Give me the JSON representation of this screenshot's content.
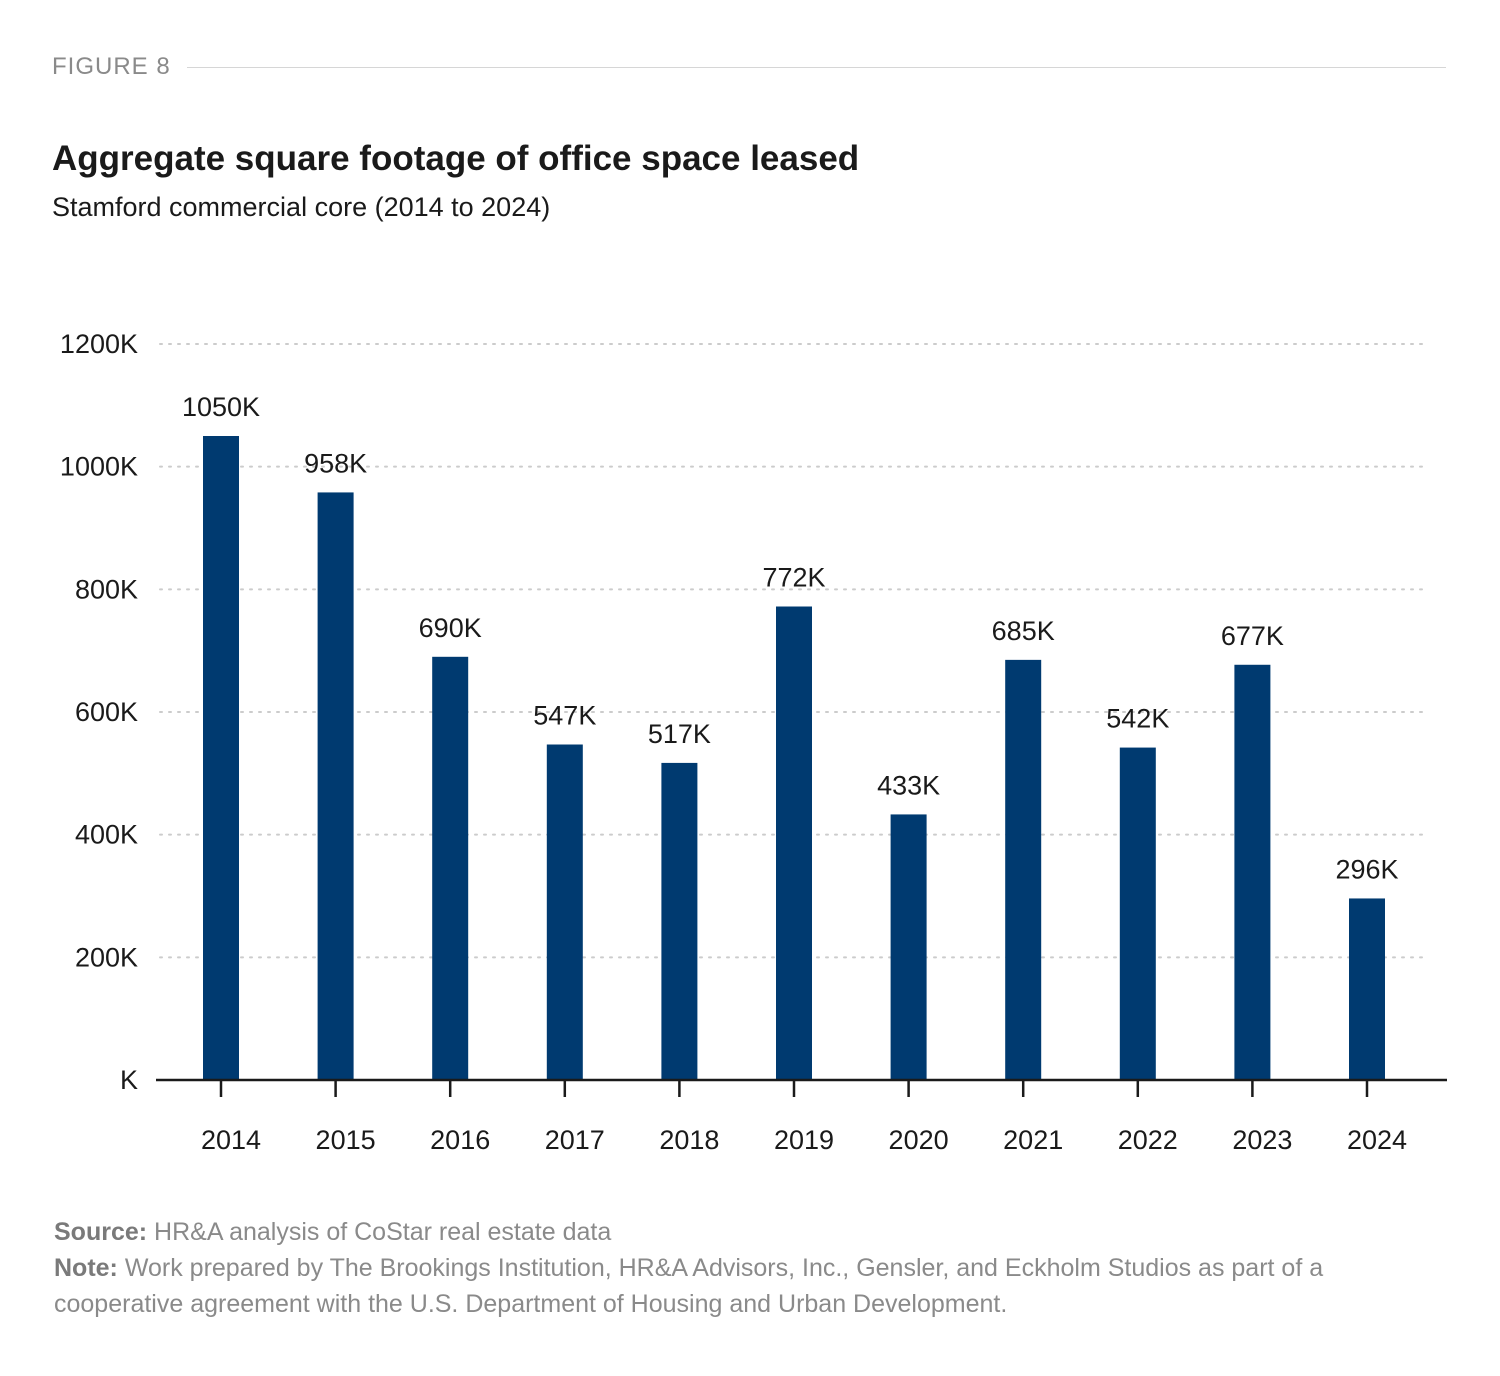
{
  "figure": {
    "label": "FIGURE 8"
  },
  "header": {
    "title": "Aggregate square footage of office space leased",
    "subtitle": "Stamford commercial core (2014 to 2024)"
  },
  "footer": {
    "source_label": "Source:",
    "source_text": "HR&A analysis of CoStar real estate data",
    "note_label": "Note:",
    "note_text": "Work prepared by The Brookings Institution, HR&A Advisors, Inc., Gensler, and Eckholm Studios as part of a cooperative agreement with the U.S. Department of Housing and Urban Development."
  },
  "colors": {
    "bar": "#003A70",
    "grid": "#cccccc",
    "axis": "#1a1a1a"
  },
  "chart_data": {
    "type": "bar",
    "title": "Aggregate square footage of office space leased",
    "subtitle": "Stamford commercial core (2014 to 2024)",
    "xlabel": "",
    "ylabel": "",
    "categories": [
      "2014",
      "2015",
      "2016",
      "2017",
      "2018",
      "2019",
      "2020",
      "2021",
      "2022",
      "2023",
      "2024"
    ],
    "values": [
      1050,
      958,
      690,
      547,
      517,
      772,
      433,
      685,
      542,
      677,
      296
    ],
    "data_labels": [
      "1050K",
      "958K",
      "690K",
      "547K",
      "517K",
      "772K",
      "433K",
      "685K",
      "542K",
      "677K",
      "296K"
    ],
    "ylim": [
      0,
      1200
    ],
    "yticks": [
      0,
      200,
      400,
      600,
      800,
      1000,
      1200
    ],
    "ytick_labels": [
      "K",
      "200K",
      "400K",
      "600K",
      "800K",
      "1000K",
      "1200K"
    ],
    "grid": true,
    "legend": "none"
  }
}
